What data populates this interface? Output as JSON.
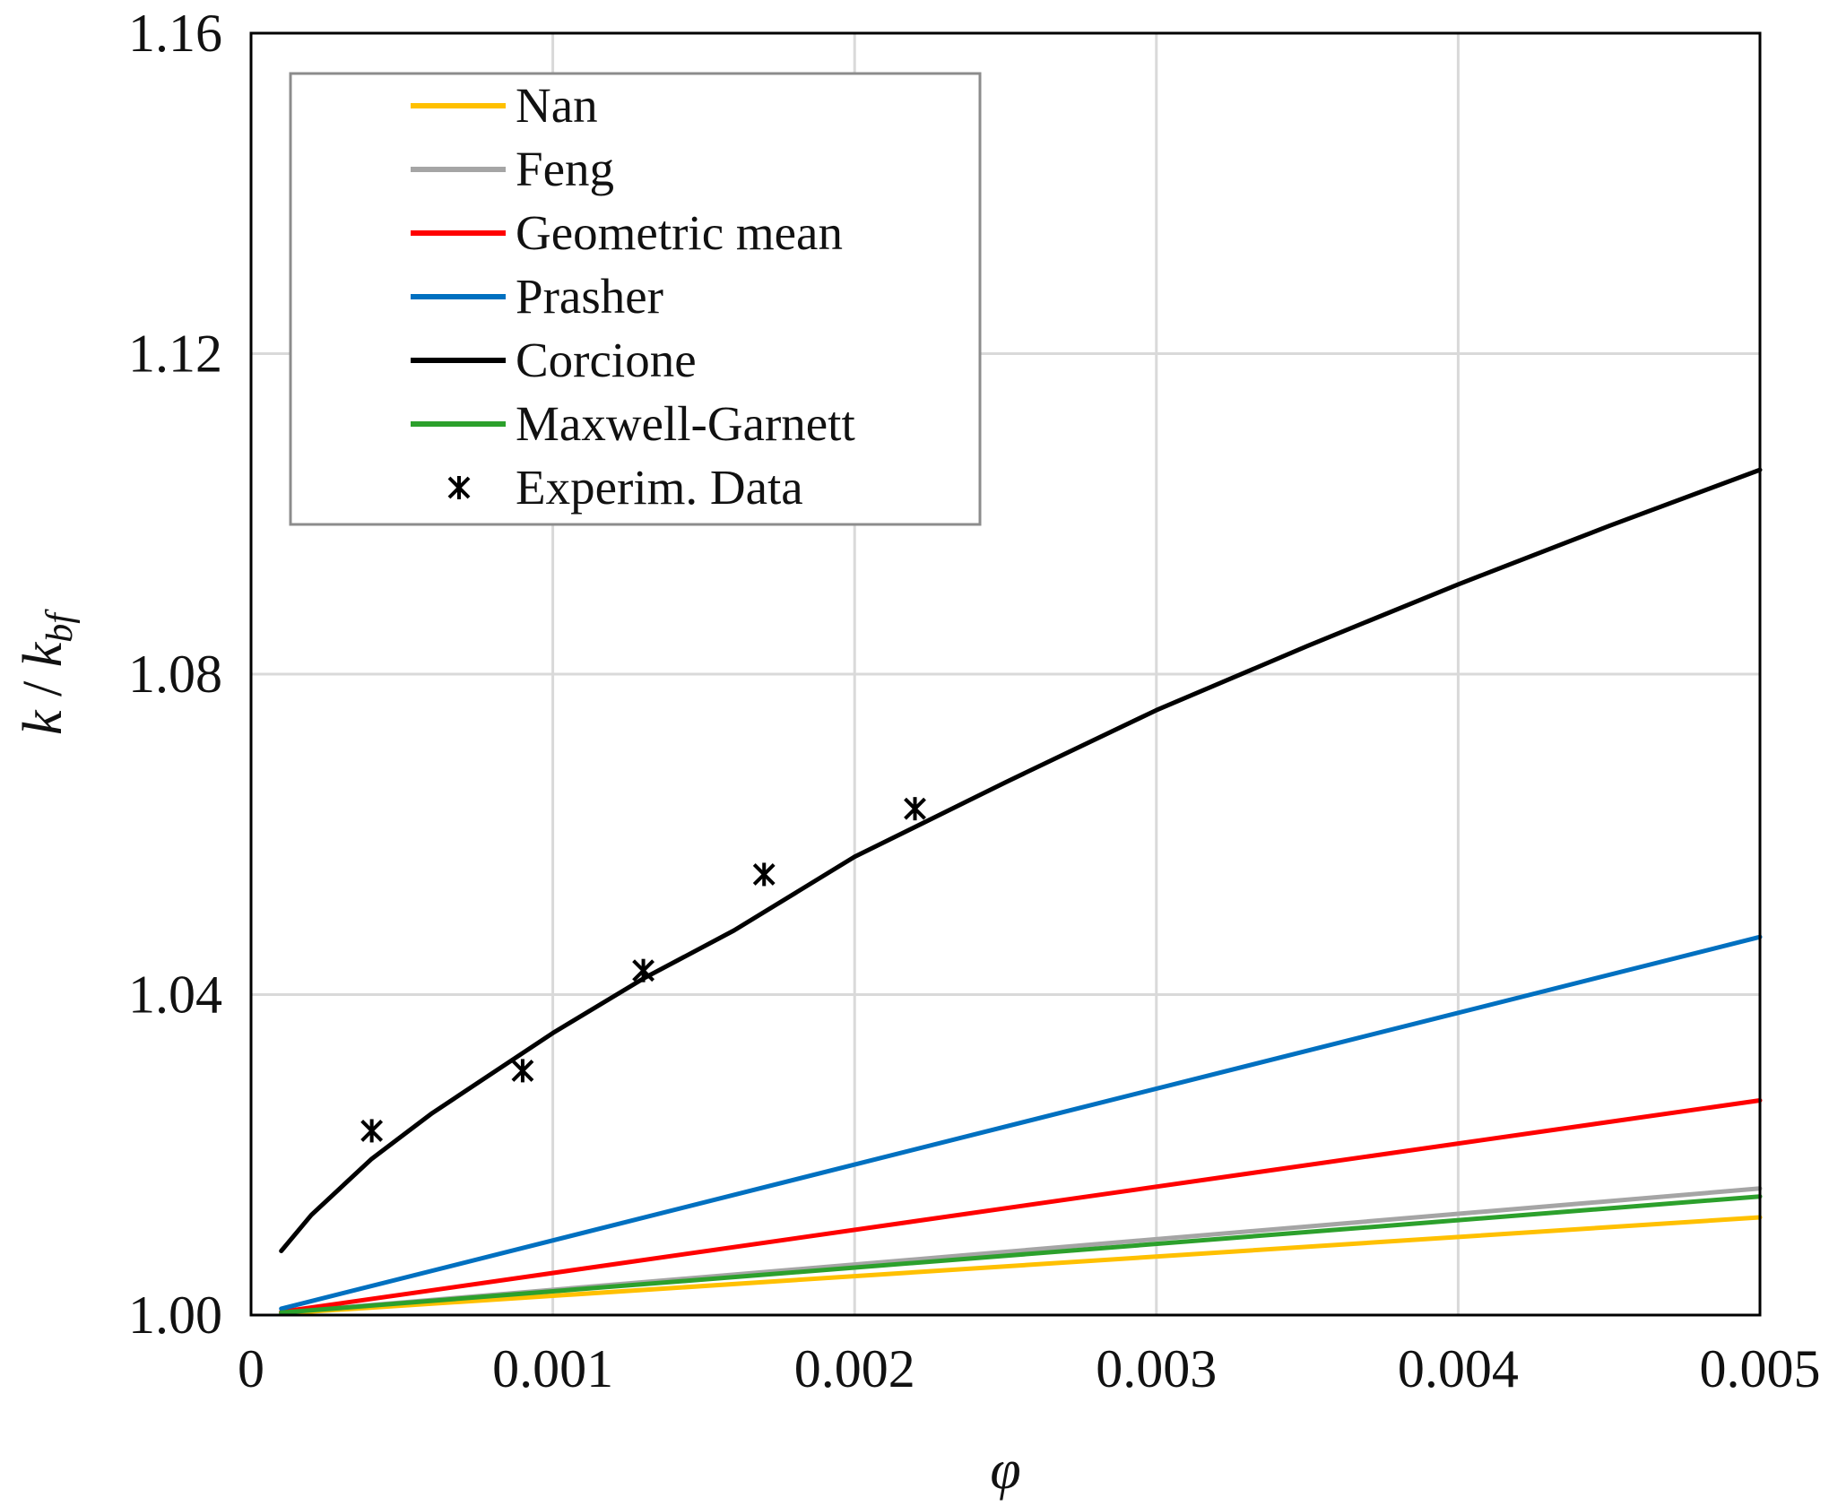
{
  "chart_data": {
    "type": "line",
    "title": "",
    "xlabel": "φ",
    "ylabel_main": "k",
    "ylabel_sep": " / ",
    "ylabel_sub_base": "k",
    "ylabel_sub": "bf",
    "xlim": [
      0,
      0.005
    ],
    "ylim": [
      1.0,
      1.16
    ],
    "x_ticks": [
      0,
      0.001,
      0.002,
      0.003,
      0.004,
      0.005
    ],
    "x_tick_labels": [
      "0",
      "0.001",
      "0.002",
      "0.003",
      "0.004",
      "0.005"
    ],
    "y_ticks": [
      1.0,
      1.04,
      1.08,
      1.12,
      1.16
    ],
    "y_tick_labels": [
      "1.00",
      "1.04",
      "1.08",
      "1.12",
      "1.16"
    ],
    "grid": true,
    "legend_position": "top-left",
    "series": [
      {
        "name": "Nan",
        "color": "#FFC000",
        "x": [
          0.0001,
          0.005
        ],
        "y": [
          1.0002,
          1.0122
        ]
      },
      {
        "name": "Feng",
        "color": "#A5A5A5",
        "x": [
          0.0001,
          0.005
        ],
        "y": [
          1.0003,
          1.0158
        ]
      },
      {
        "name": "Geometric mean",
        "color": "#FF0000",
        "x": [
          0.0001,
          0.005
        ],
        "y": [
          1.0004,
          1.0268
        ]
      },
      {
        "name": "Prasher",
        "color": "#0070C0",
        "x": [
          0.0001,
          0.005
        ],
        "y": [
          1.0008,
          1.0472
        ]
      },
      {
        "name": "Corcione",
        "color": "#000000",
        "x": [
          0.0001,
          0.0002,
          0.0004,
          0.0006,
          0.0008,
          0.001,
          0.0013,
          0.0016,
          0.002,
          0.0025,
          0.003,
          0.0035,
          0.004,
          0.0045,
          0.005
        ],
        "y": [
          1.008,
          1.0125,
          1.0195,
          1.0252,
          1.0302,
          1.0352,
          1.042,
          1.048,
          1.0572,
          1.0665,
          1.0755,
          1.0835,
          1.0912,
          1.0985,
          1.1055
        ]
      },
      {
        "name": "Maxwell-Garnett",
        "color": "#2CA02C",
        "x": [
          0.0001,
          0.005
        ],
        "y": [
          1.0003,
          1.0148
        ]
      }
    ],
    "scatter": {
      "name": "Experim. Data",
      "color": "#000000",
      "x": [
        0.0004,
        0.0009,
        0.0013,
        0.0017,
        0.0022
      ],
      "y": [
        1.023,
        1.0305,
        1.043,
        1.055,
        1.0632
      ]
    }
  }
}
